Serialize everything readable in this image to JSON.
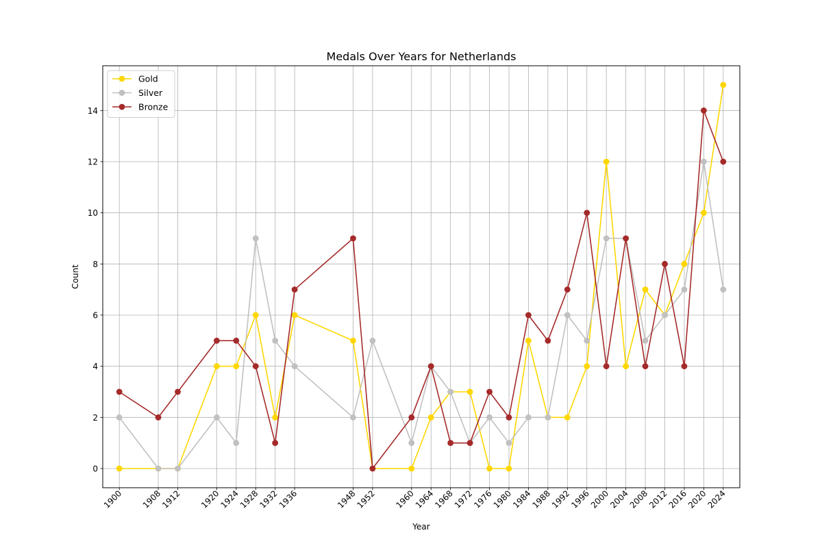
{
  "chart_data": {
    "type": "line",
    "title": "Medals Over Years for Netherlands",
    "xlabel": "Year",
    "ylabel": "Count",
    "x": [
      1900,
      1908,
      1912,
      1920,
      1924,
      1928,
      1932,
      1936,
      1948,
      1952,
      1960,
      1964,
      1968,
      1972,
      1976,
      1980,
      1984,
      1988,
      1992,
      1996,
      2000,
      2004,
      2008,
      2012,
      2016,
      2020,
      2024
    ],
    "x_ticks": [
      "1900",
      "1908",
      "1912",
      "1920",
      "1924",
      "1928",
      "1932",
      "1936",
      "1948",
      "1952",
      "1960",
      "1964",
      "1968",
      "1972",
      "1976",
      "1980",
      "1984",
      "1988",
      "1992",
      "1996",
      "2000",
      "2004",
      "2008",
      "2012",
      "2016",
      "2020",
      "2024"
    ],
    "y_ticks": [
      "0",
      "2",
      "4",
      "6",
      "8",
      "10",
      "12",
      "14"
    ],
    "xlim": [
      1896.6,
      2027.4
    ],
    "ylim": [
      -0.75,
      15.75
    ],
    "grid": true,
    "legend_position": "top-left",
    "series": [
      {
        "name": "Gold",
        "color": "#FFD700",
        "values": [
          0,
          0,
          0,
          4,
          4,
          6,
          2,
          6,
          5,
          0,
          0,
          2,
          3,
          3,
          0,
          0,
          5,
          2,
          2,
          4,
          12,
          4,
          7,
          6,
          8,
          10,
          15
        ]
      },
      {
        "name": "Silver",
        "color": "#C0C0C0",
        "values": [
          2,
          0,
          0,
          2,
          1,
          9,
          5,
          4,
          2,
          5,
          1,
          4,
          3,
          1,
          2,
          1,
          2,
          2,
          6,
          5,
          9,
          9,
          5,
          6,
          7,
          12,
          7
        ]
      },
      {
        "name": "Bronze",
        "color": "#A52A2A",
        "values": [
          3,
          2,
          3,
          5,
          5,
          4,
          1,
          7,
          9,
          0,
          2,
          4,
          1,
          1,
          3,
          2,
          6,
          5,
          7,
          10,
          4,
          9,
          4,
          8,
          4,
          14,
          12
        ]
      }
    ]
  }
}
